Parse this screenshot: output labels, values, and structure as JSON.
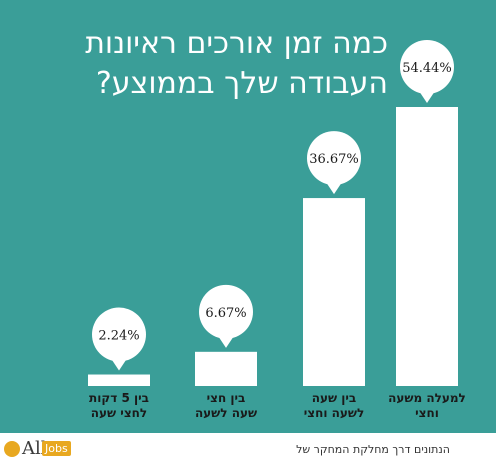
{
  "title_lines": [
    "כמה זמן אורכים ראיונות",
    "העבודה שלך בממוצע?"
  ],
  "footer": {
    "text": "הנתונים דרך מחלקת המחקר של",
    "logo_all": "All",
    "logo_jobs": "Jobs"
  },
  "colors": {
    "background": "#3a9e98",
    "bar": "#ffffff",
    "text_dark": "#1a1a1a"
  },
  "chart_data": {
    "type": "bar",
    "categories": [
      [
        "בין 5 דקות",
        "לחצי שעה"
      ],
      [
        "בין חצי",
        "שעה לשעה"
      ],
      [
        "בין שעה",
        "לשעה וחצי"
      ],
      [
        "למעלה משעה",
        "וחצי"
      ]
    ],
    "values": [
      2.24,
      6.67,
      36.67,
      54.44
    ],
    "value_labels": [
      "2.24%",
      "6.67%",
      "36.67%",
      "54.44%"
    ],
    "title": "כמה זמן אורכים ראיונות העבודה שלך בממוצע?",
    "unit": "%"
  }
}
